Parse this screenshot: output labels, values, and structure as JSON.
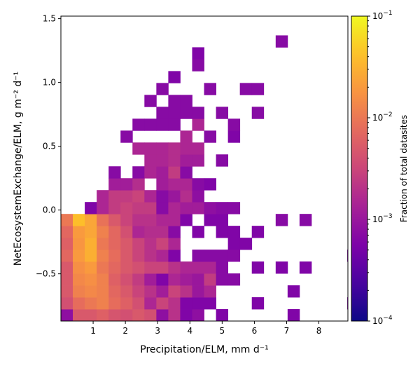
{
  "chart_data": {
    "type": "heatmap",
    "title": "",
    "xlabel": "Precipitation/ELM,  mm d⁻¹",
    "ylabel": "NetEcosystemExchange/ELM,  g m⁻² d⁻¹",
    "xlim": [
      0,
      8.9
    ],
    "ylim": [
      -0.87,
      1.52
    ],
    "xticks": [
      {
        "v": 1,
        "label": "1"
      },
      {
        "v": 2,
        "label": "2"
      },
      {
        "v": 3,
        "label": "3"
      },
      {
        "v": 4,
        "label": "4"
      },
      {
        "v": 5,
        "label": "5"
      },
      {
        "v": 6,
        "label": "6"
      },
      {
        "v": 7,
        "label": "7"
      },
      {
        "v": 8,
        "label": "8"
      }
    ],
    "yticks": [
      {
        "v": -0.5,
        "label": "−0.5"
      },
      {
        "v": 0.0,
        "label": "0.0"
      },
      {
        "v": 0.5,
        "label": "0.5"
      },
      {
        "v": 1.0,
        "label": "1.0"
      },
      {
        "v": 1.5,
        "label": "1.5"
      }
    ],
    "x_bin_edges_start": 0,
    "x_bin_width": 0.37,
    "y_bin_edges_start": -0.87,
    "y_bin_height": 0.0933,
    "cells_note": "Each cell: [x_bin_index, y_bin_index, fraction of total datasites]",
    "cells": [
      [
        0,
        0,
        0.0008
      ],
      [
        1,
        0,
        0.005
      ],
      [
        2,
        0,
        0.005
      ],
      [
        3,
        0,
        0.006
      ],
      [
        4,
        0,
        0.0045
      ],
      [
        5,
        0,
        0.004
      ],
      [
        6,
        0,
        0.005
      ],
      [
        7,
        0,
        0.004
      ],
      [
        8,
        0,
        0.0008
      ],
      [
        9,
        0,
        0.002
      ],
      [
        10,
        0,
        0.0006
      ],
      [
        11,
        0,
        0.0008
      ],
      [
        13,
        0,
        0.0006
      ],
      [
        19,
        0,
        0.0006
      ],
      [
        0,
        1,
        0.004
      ],
      [
        1,
        1,
        0.008
      ],
      [
        2,
        1,
        0.01
      ],
      [
        3,
        1,
        0.012
      ],
      [
        4,
        1,
        0.008
      ],
      [
        5,
        1,
        0.006
      ],
      [
        6,
        1,
        0.004
      ],
      [
        7,
        1,
        0.0015
      ],
      [
        8,
        1,
        0.003
      ],
      [
        9,
        1,
        0.002
      ],
      [
        10,
        1,
        0.0006
      ],
      [
        11,
        1,
        0.0006
      ],
      [
        12,
        1,
        0.0006
      ],
      [
        16,
        1,
        0.0006
      ],
      [
        24,
        1,
        0.0006
      ],
      [
        0,
        2,
        0.005
      ],
      [
        1,
        2,
        0.012
      ],
      [
        2,
        2,
        0.014
      ],
      [
        3,
        2,
        0.012
      ],
      [
        4,
        2,
        0.007
      ],
      [
        5,
        2,
        0.005
      ],
      [
        6,
        2,
        0.003
      ],
      [
        7,
        2,
        0.002
      ],
      [
        8,
        2,
        0.0012
      ],
      [
        9,
        2,
        0.003
      ],
      [
        10,
        2,
        0.002
      ],
      [
        11,
        2,
        0.001
      ],
      [
        12,
        2,
        0.0015
      ],
      [
        19,
        2,
        0.0006
      ],
      [
        0,
        3,
        0.005
      ],
      [
        1,
        3,
        0.014
      ],
      [
        2,
        3,
        0.016
      ],
      [
        3,
        3,
        0.012
      ],
      [
        4,
        3,
        0.006
      ],
      [
        5,
        3,
        0.004
      ],
      [
        6,
        3,
        0.0025
      ],
      [
        7,
        3,
        0.0012
      ],
      [
        8,
        3,
        0.0006
      ],
      [
        9,
        3,
        0.0015
      ],
      [
        10,
        3,
        0.0012
      ],
      [
        11,
        3,
        0.001
      ],
      [
        12,
        3,
        0.0025
      ],
      [
        13,
        3,
        0.0007
      ],
      [
        14,
        3,
        0.0007
      ],
      [
        25,
        3,
        0.0007
      ],
      [
        26,
        3,
        0.002
      ],
      [
        0,
        4,
        0.005
      ],
      [
        1,
        4,
        0.016
      ],
      [
        2,
        4,
        0.02
      ],
      [
        3,
        4,
        0.01
      ],
      [
        4,
        4,
        0.007
      ],
      [
        5,
        4,
        0.005
      ],
      [
        6,
        4,
        0.004
      ],
      [
        7,
        4,
        0.003
      ],
      [
        8,
        4,
        0.003
      ],
      [
        9,
        4,
        0.002
      ],
      [
        10,
        4,
        0.0015
      ],
      [
        11,
        4,
        0.0015
      ],
      [
        12,
        4,
        0.0015
      ],
      [
        13,
        4,
        0.0007
      ],
      [
        16,
        4,
        0.0006
      ],
      [
        18,
        4,
        0.0006
      ],
      [
        20,
        4,
        0.0006
      ],
      [
        0,
        5,
        0.007
      ],
      [
        1,
        5,
        0.02
      ],
      [
        2,
        5,
        0.03
      ],
      [
        3,
        5,
        0.012
      ],
      [
        4,
        5,
        0.008
      ],
      [
        5,
        5,
        0.005
      ],
      [
        6,
        5,
        0.003
      ],
      [
        7,
        5,
        0.002
      ],
      [
        8,
        5,
        0.0015
      ],
      [
        9,
        5,
        0.0006
      ],
      [
        11,
        5,
        0.0007
      ],
      [
        12,
        5,
        0.0007
      ],
      [
        13,
        5,
        0.0007
      ],
      [
        14,
        5,
        0.0007
      ],
      [
        24,
        5,
        0.0006
      ],
      [
        25,
        5,
        0.0006
      ],
      [
        0,
        6,
        0.006
      ],
      [
        1,
        6,
        0.018
      ],
      [
        2,
        6,
        0.03
      ],
      [
        3,
        6,
        0.01
      ],
      [
        4,
        6,
        0.007
      ],
      [
        5,
        6,
        0.005
      ],
      [
        6,
        6,
        0.003
      ],
      [
        7,
        6,
        0.002
      ],
      [
        8,
        6,
        0.003
      ],
      [
        9,
        6,
        0.0015
      ],
      [
        14,
        6,
        0.0006
      ],
      [
        15,
        6,
        0.0006
      ],
      [
        0,
        7,
        0.007
      ],
      [
        1,
        7,
        0.02
      ],
      [
        2,
        7,
        0.025
      ],
      [
        3,
        7,
        0.012
      ],
      [
        4,
        7,
        0.007
      ],
      [
        5,
        7,
        0.004
      ],
      [
        6,
        7,
        0.0015
      ],
      [
        7,
        7,
        0.0018
      ],
      [
        8,
        7,
        0.0018
      ],
      [
        9,
        7,
        0.0007
      ],
      [
        11,
        7,
        0.0006
      ],
      [
        13,
        7,
        0.0006
      ],
      [
        14,
        7,
        0.0006
      ],
      [
        16,
        7,
        0.0006
      ],
      [
        0,
        8,
        0.01
      ],
      [
        1,
        8,
        0.04
      ],
      [
        2,
        8,
        0.025
      ],
      [
        3,
        8,
        0.009
      ],
      [
        4,
        8,
        0.005
      ],
      [
        5,
        8,
        0.003
      ],
      [
        6,
        8,
        0.002
      ],
      [
        7,
        8,
        0.002
      ],
      [
        8,
        8,
        0.0015
      ],
      [
        9,
        8,
        0.0015
      ],
      [
        10,
        8,
        0.0006
      ],
      [
        12,
        8,
        0.0006
      ],
      [
        13,
        8,
        0.0006
      ],
      [
        18,
        8,
        0.0007
      ],
      [
        20,
        8,
        0.0007
      ],
      [
        2,
        9,
        0.0006
      ],
      [
        3,
        9,
        0.0015
      ],
      [
        4,
        9,
        0.0025
      ],
      [
        5,
        9,
        0.003
      ],
      [
        6,
        9,
        0.0025
      ],
      [
        7,
        9,
        0.0025
      ],
      [
        8,
        9,
        0.0007
      ],
      [
        9,
        9,
        0.0015
      ],
      [
        10,
        9,
        0.0012
      ],
      [
        11,
        9,
        0.0012
      ],
      [
        12,
        9,
        0.0008
      ],
      [
        13,
        9,
        0.0007
      ],
      [
        14,
        9,
        0.0007
      ],
      [
        3,
        10,
        0.0015
      ],
      [
        4,
        10,
        0.0025
      ],
      [
        5,
        10,
        0.0025
      ],
      [
        6,
        10,
        0.003
      ],
      [
        7,
        10,
        0.0015
      ],
      [
        8,
        10,
        0.0007
      ],
      [
        9,
        10,
        0.001
      ],
      [
        10,
        10,
        0.0018
      ],
      [
        11,
        10,
        0.0008
      ],
      [
        4,
        11,
        0.0012
      ],
      [
        5,
        11,
        0.0012
      ],
      [
        6,
        11,
        0.0018
      ],
      [
        8,
        11,
        0.0012
      ],
      [
        9,
        11,
        0.0015
      ],
      [
        10,
        11,
        0.0015
      ],
      [
        11,
        11,
        0.0007
      ],
      [
        12,
        11,
        0.0006
      ],
      [
        4,
        12,
        0.0007
      ],
      [
        6,
        12,
        0.0007
      ],
      [
        7,
        12,
        0.0015
      ],
      [
        8,
        12,
        0.0012
      ],
      [
        9,
        12,
        0.0025
      ],
      [
        10,
        12,
        0.0007
      ],
      [
        7,
        13,
        0.0015
      ],
      [
        8,
        13,
        0.0015
      ],
      [
        9,
        13,
        0.0018
      ],
      [
        10,
        13,
        0.0012
      ],
      [
        11,
        13,
        0.0012
      ],
      [
        13,
        13,
        0.0007
      ],
      [
        6,
        14,
        0.0015
      ],
      [
        7,
        14,
        0.0015
      ],
      [
        8,
        14,
        0.0015
      ],
      [
        9,
        14,
        0.0018
      ],
      [
        10,
        14,
        0.0015
      ],
      [
        11,
        14,
        0.0015
      ],
      [
        5,
        15,
        0.0007
      ],
      [
        10,
        15,
        0.0015
      ],
      [
        12,
        15,
        0.0007
      ],
      [
        14,
        15,
        0.0006
      ],
      [
        6,
        16,
        0.0007
      ],
      [
        7,
        16,
        0.0007
      ],
      [
        8,
        16,
        0.0007
      ],
      [
        9,
        16,
        0.0007
      ],
      [
        11,
        16,
        0.0015
      ],
      [
        14,
        16,
        0.0007
      ],
      [
        8,
        17,
        0.0007
      ],
      [
        9,
        17,
        0.0007
      ],
      [
        10,
        17,
        0.0007
      ],
      [
        11,
        17,
        0.0007
      ],
      [
        13,
        17,
        0.0007
      ],
      [
        16,
        17,
        0.0007
      ],
      [
        7,
        18,
        0.0007
      ],
      [
        9,
        18,
        0.0007
      ],
      [
        10,
        18,
        0.0007
      ],
      [
        8,
        19,
        0.0007
      ],
      [
        12,
        19,
        0.0007
      ],
      [
        15,
        19,
        0.0007
      ],
      [
        16,
        19,
        0.0007
      ],
      [
        9,
        20,
        0.0006
      ],
      [
        11,
        21,
        0.0007
      ],
      [
        11,
        22,
        0.0006
      ],
      [
        18,
        23,
        0.0007
      ]
    ],
    "colorbar": {
      "label": "Fraction of total datasites",
      "scale": "log",
      "min": 0.0001,
      "max": 0.1,
      "ticks": [
        {
          "v": 0.1,
          "base": "10",
          "exp": "−1"
        },
        {
          "v": 0.01,
          "base": "10",
          "exp": "−2"
        },
        {
          "v": 0.001,
          "base": "10",
          "exp": "−3"
        },
        {
          "v": 0.0001,
          "base": "10",
          "exp": "−4"
        }
      ],
      "colormap": "plasma"
    },
    "grid": false,
    "legend": "none"
  }
}
